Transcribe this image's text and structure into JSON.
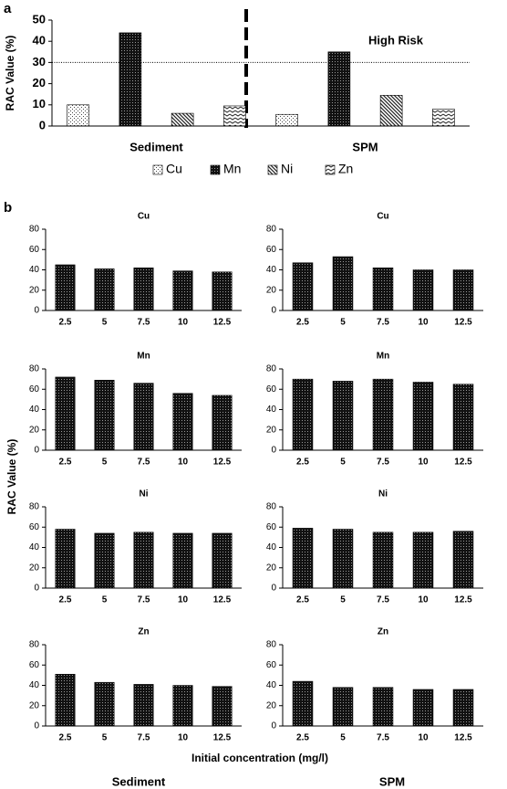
{
  "figure": {
    "panel_a_label": "a",
    "panel_b_label": "b",
    "panel_b_y_label": "RAC Value (%)",
    "panel_b_x_label": "Initial concentration (mg/l)",
    "column_labels": [
      "Sediment",
      "SPM"
    ]
  },
  "chart_data": [
    {
      "type": "bar",
      "y_label": "RAC Value (%)",
      "categories": [
        "Sediment",
        "SPM"
      ],
      "series": [
        {
          "name": "Cu",
          "pattern": "dots",
          "values": [
            10,
            5.5
          ]
        },
        {
          "name": "Mn",
          "pattern": "cross",
          "values": [
            44,
            35
          ]
        },
        {
          "name": "Ni",
          "pattern": "diag",
          "values": [
            6,
            14.5
          ]
        },
        {
          "name": "Zn",
          "pattern": "wave",
          "values": [
            9.5,
            8
          ]
        }
      ],
      "ylim": [
        0,
        50
      ],
      "yticks": [
        0,
        10,
        20,
        30,
        40,
        50
      ],
      "threshold": 30,
      "annotation": "High Risk",
      "legend": "bottom"
    },
    {
      "type": "bar",
      "title": "Cu",
      "categories": [
        "2.5",
        "5",
        "7.5",
        "10",
        "12.5"
      ],
      "values": [
        45,
        41,
        42,
        39,
        38
      ],
      "pattern": "cross",
      "ylim": [
        0,
        80
      ],
      "yticks": [
        0,
        20,
        40,
        60,
        80
      ]
    },
    {
      "type": "bar",
      "title": "Cu",
      "categories": [
        "2.5",
        "5",
        "7.5",
        "10",
        "12.5"
      ],
      "values": [
        47,
        53,
        42,
        40,
        40
      ],
      "pattern": "cross",
      "ylim": [
        0,
        80
      ],
      "yticks": [
        0,
        20,
        40,
        60,
        80
      ]
    },
    {
      "type": "bar",
      "title": "Mn",
      "categories": [
        "2.5",
        "5",
        "7.5",
        "10",
        "12.5"
      ],
      "values": [
        72,
        69,
        66,
        56,
        54
      ],
      "pattern": "cross",
      "ylim": [
        0,
        80
      ],
      "yticks": [
        0,
        20,
        40,
        60,
        80
      ]
    },
    {
      "type": "bar",
      "title": "Mn",
      "categories": [
        "2.5",
        "5",
        "7.5",
        "10",
        "12.5"
      ],
      "values": [
        70,
        68,
        70,
        67,
        65
      ],
      "pattern": "cross",
      "ylim": [
        0,
        80
      ],
      "yticks": [
        0,
        20,
        40,
        60,
        80
      ]
    },
    {
      "type": "bar",
      "title": "Ni",
      "categories": [
        "2.5",
        "5",
        "7.5",
        "10",
        "12.5"
      ],
      "values": [
        58,
        54,
        55,
        54,
        54
      ],
      "pattern": "cross",
      "ylim": [
        0,
        80
      ],
      "yticks": [
        0,
        20,
        40,
        60,
        80
      ]
    },
    {
      "type": "bar",
      "title": "Ni",
      "categories": [
        "2.5",
        "5",
        "7.5",
        "10",
        "12.5"
      ],
      "values": [
        59,
        58,
        55,
        55,
        56
      ],
      "pattern": "cross",
      "ylim": [
        0,
        80
      ],
      "yticks": [
        0,
        20,
        40,
        60,
        80
      ]
    },
    {
      "type": "bar",
      "title": "Zn",
      "categories": [
        "2.5",
        "5",
        "7.5",
        "10",
        "12.5"
      ],
      "values": [
        51,
        43,
        41,
        40,
        39
      ],
      "pattern": "cross",
      "ylim": [
        0,
        80
      ],
      "yticks": [
        0,
        20,
        40,
        60,
        80
      ]
    },
    {
      "type": "bar",
      "title": "Zn",
      "categories": [
        "2.5",
        "5",
        "7.5",
        "10",
        "12.5"
      ],
      "values": [
        44,
        38,
        38,
        36,
        36
      ],
      "pattern": "cross",
      "ylim": [
        0,
        80
      ],
      "yticks": [
        0,
        20,
        40,
        60,
        80
      ]
    }
  ]
}
